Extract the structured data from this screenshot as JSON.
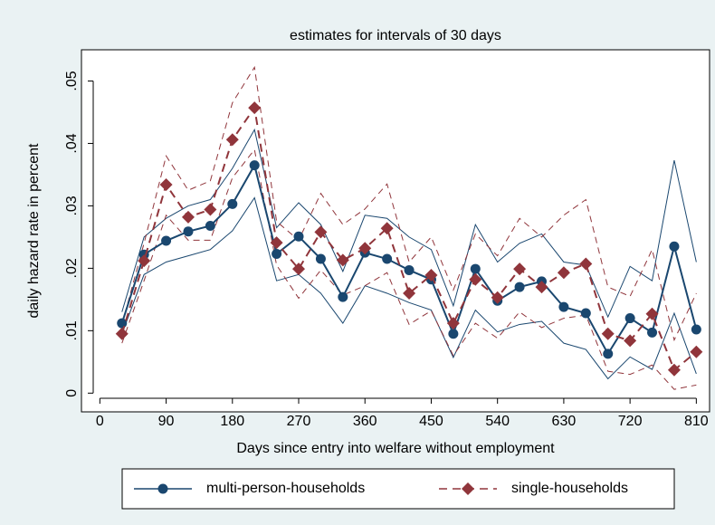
{
  "chart_data": {
    "type": "line",
    "title": "estimates for intervals of 30 days",
    "x_label": "Days since entry into welfare without employment",
    "y_label": "daily hazard rate in percent",
    "x": [
      30,
      60,
      90,
      120,
      150,
      180,
      210,
      240,
      270,
      300,
      330,
      360,
      390,
      420,
      450,
      480,
      510,
      540,
      570,
      600,
      630,
      660,
      690,
      720,
      750,
      780,
      810
    ],
    "series": [
      {
        "name": "multi-person-households",
        "color": "#1a476f",
        "marker": "circle",
        "dash": false,
        "values": [
          0.0112,
          0.0222,
          0.0244,
          0.0259,
          0.0268,
          0.0303,
          0.0365,
          0.0223,
          0.0251,
          0.0215,
          0.0154,
          0.0225,
          0.0215,
          0.0197,
          0.0182,
          0.0095,
          0.0199,
          0.0148,
          0.017,
          0.0179,
          0.0138,
          0.0128,
          0.0063,
          0.012,
          0.0097,
          0.0235,
          0.0102
        ],
        "upper": [
          0.013,
          0.025,
          0.028,
          0.03,
          0.031,
          0.036,
          0.0422,
          0.0265,
          0.0305,
          0.027,
          0.0195,
          0.0285,
          0.028,
          0.025,
          0.023,
          0.014,
          0.027,
          0.021,
          0.024,
          0.0255,
          0.021,
          0.0205,
          0.0122,
          0.0203,
          0.018,
          0.0373,
          0.021
        ],
        "lower": [
          0.0095,
          0.019,
          0.021,
          0.022,
          0.023,
          0.026,
          0.0313,
          0.018,
          0.019,
          0.016,
          0.0112,
          0.0172,
          0.016,
          0.0145,
          0.0133,
          0.0057,
          0.0133,
          0.0098,
          0.011,
          0.0115,
          0.008,
          0.007,
          0.0023,
          0.0058,
          0.0038,
          0.0128,
          0.0031
        ]
      },
      {
        "name": "single-households",
        "color": "#90353b",
        "marker": "diamond",
        "dash": true,
        "values": [
          0.0095,
          0.0212,
          0.0334,
          0.0282,
          0.0294,
          0.0406,
          0.0457,
          0.0241,
          0.0199,
          0.0258,
          0.0213,
          0.0232,
          0.0264,
          0.016,
          0.0189,
          0.0112,
          0.0182,
          0.0153,
          0.0199,
          0.017,
          0.0193,
          0.0207,
          0.0095,
          0.0084,
          0.0127,
          0.0037,
          0.0066
        ],
        "upper": [
          0.011,
          0.024,
          0.038,
          0.0325,
          0.034,
          0.0465,
          0.0522,
          0.0275,
          0.0245,
          0.032,
          0.027,
          0.0295,
          0.0335,
          0.021,
          0.025,
          0.0165,
          0.0255,
          0.022,
          0.028,
          0.025,
          0.0285,
          0.031,
          0.017,
          0.0155,
          0.023,
          0.0085,
          0.016
        ],
        "lower": [
          0.008,
          0.018,
          0.0285,
          0.0245,
          0.0245,
          0.0345,
          0.039,
          0.0205,
          0.0152,
          0.0197,
          0.0157,
          0.0172,
          0.0193,
          0.011,
          0.0132,
          0.006,
          0.0112,
          0.0088,
          0.013,
          0.0105,
          0.012,
          0.0125,
          0.0035,
          0.003,
          0.0045,
          0.0006,
          0.0013
        ]
      }
    ],
    "xlim": [
      -25,
      828
    ],
    "xticks": [
      0,
      90,
      180,
      270,
      360,
      450,
      540,
      630,
      720,
      810
    ],
    "ylim": [
      -0.003,
      0.055
    ],
    "yticks": [
      0,
      {
        "value": 0.01,
        "label": ".01"
      },
      {
        "value": 0.02,
        "label": ".02"
      },
      {
        "value": 0.03,
        "label": ".03"
      },
      {
        "value": 0.04,
        "label": ".04"
      },
      {
        "value": 0.05,
        "label": ".05"
      }
    ],
    "legend": "bottom"
  }
}
